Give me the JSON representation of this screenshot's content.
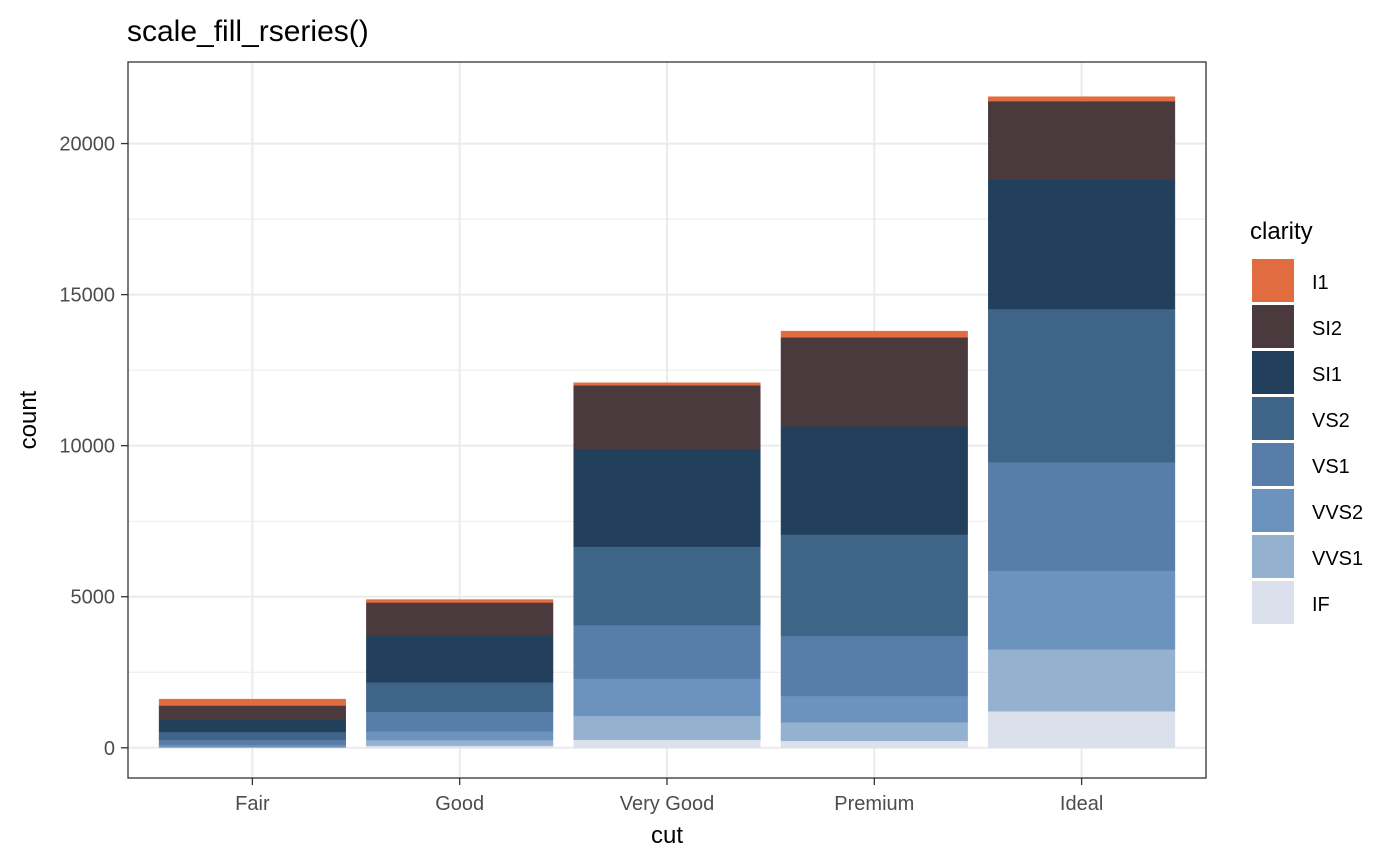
{
  "chart_data": {
    "type": "bar",
    "stacked": true,
    "title": "scale_fill_rseries()",
    "xlabel": "cut",
    "ylabel": "count",
    "categories": [
      "Fair",
      "Good",
      "Very Good",
      "Premium",
      "Ideal"
    ],
    "ylim": [
      -1000,
      22700
    ],
    "yticks": [
      0,
      5000,
      10000,
      15000,
      20000
    ],
    "ytick_labels": [
      "0",
      "5000",
      "10000",
      "15000",
      "20000"
    ],
    "grid": true,
    "legend": {
      "title": "clarity",
      "position": "right"
    },
    "series": [
      {
        "name": "I1",
        "color": "#E06C40",
        "values": [
          210,
          96,
          84,
          205,
          146
        ]
      },
      {
        "name": "SI2",
        "color": "#4A3A3E",
        "values": [
          466,
          1081,
          2100,
          2949,
          2598
        ]
      },
      {
        "name": "SI1",
        "color": "#223F5C",
        "values": [
          408,
          1560,
          3240,
          3575,
          4282
        ]
      },
      {
        "name": "VS2",
        "color": "#3E6488",
        "values": [
          261,
          978,
          2591,
          3357,
          5071
        ]
      },
      {
        "name": "VS1",
        "color": "#577DA8",
        "values": [
          170,
          648,
          1775,
          1989,
          3589
        ]
      },
      {
        "name": "VVS2",
        "color": "#6C93BD",
        "values": [
          69,
          286,
          1235,
          870,
          2606
        ]
      },
      {
        "name": "VVS1",
        "color": "#95B1D0",
        "values": [
          17,
          186,
          789,
          616,
          2047
        ]
      },
      {
        "name": "IF",
        "color": "#DAE0EC",
        "values": [
          9,
          71,
          268,
          230,
          1212
        ]
      }
    ]
  }
}
